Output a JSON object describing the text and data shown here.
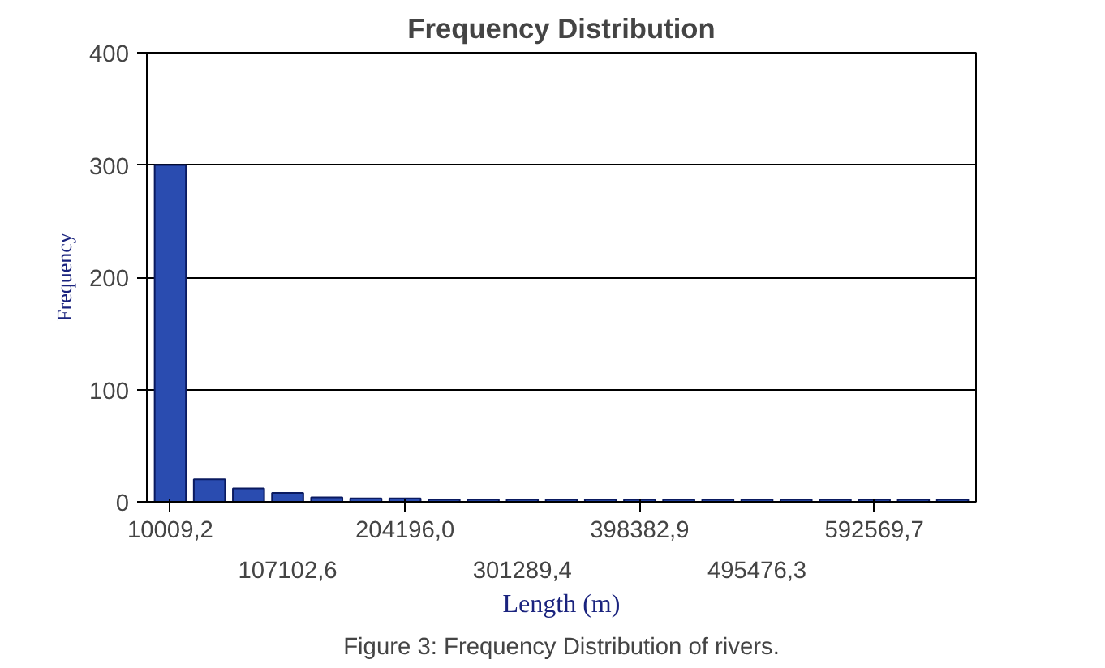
{
  "chart_data": {
    "type": "bar",
    "title": "Frequency Distribution",
    "xlabel": "Length (m)",
    "ylabel": "Frequency",
    "categories": [
      "10009,2",
      null,
      null,
      "107102,6",
      null,
      null,
      "204196,0",
      null,
      null,
      "301289,4",
      null,
      null,
      "398382,9",
      null,
      null,
      "495476,3",
      null,
      null,
      "592569,7",
      null,
      null
    ],
    "values": [
      300,
      20,
      12,
      8,
      4,
      3,
      3,
      2,
      2,
      2,
      2,
      2,
      2,
      2,
      2,
      2,
      2,
      2,
      2,
      2,
      2
    ],
    "color": "#2a4cb0",
    "ylim": [
      0,
      400
    ],
    "yticks": [
      0,
      100,
      200,
      300,
      400
    ],
    "grid": "y",
    "annotations": [
      "Figure 3: Frequency Distribution of rivers."
    ]
  }
}
